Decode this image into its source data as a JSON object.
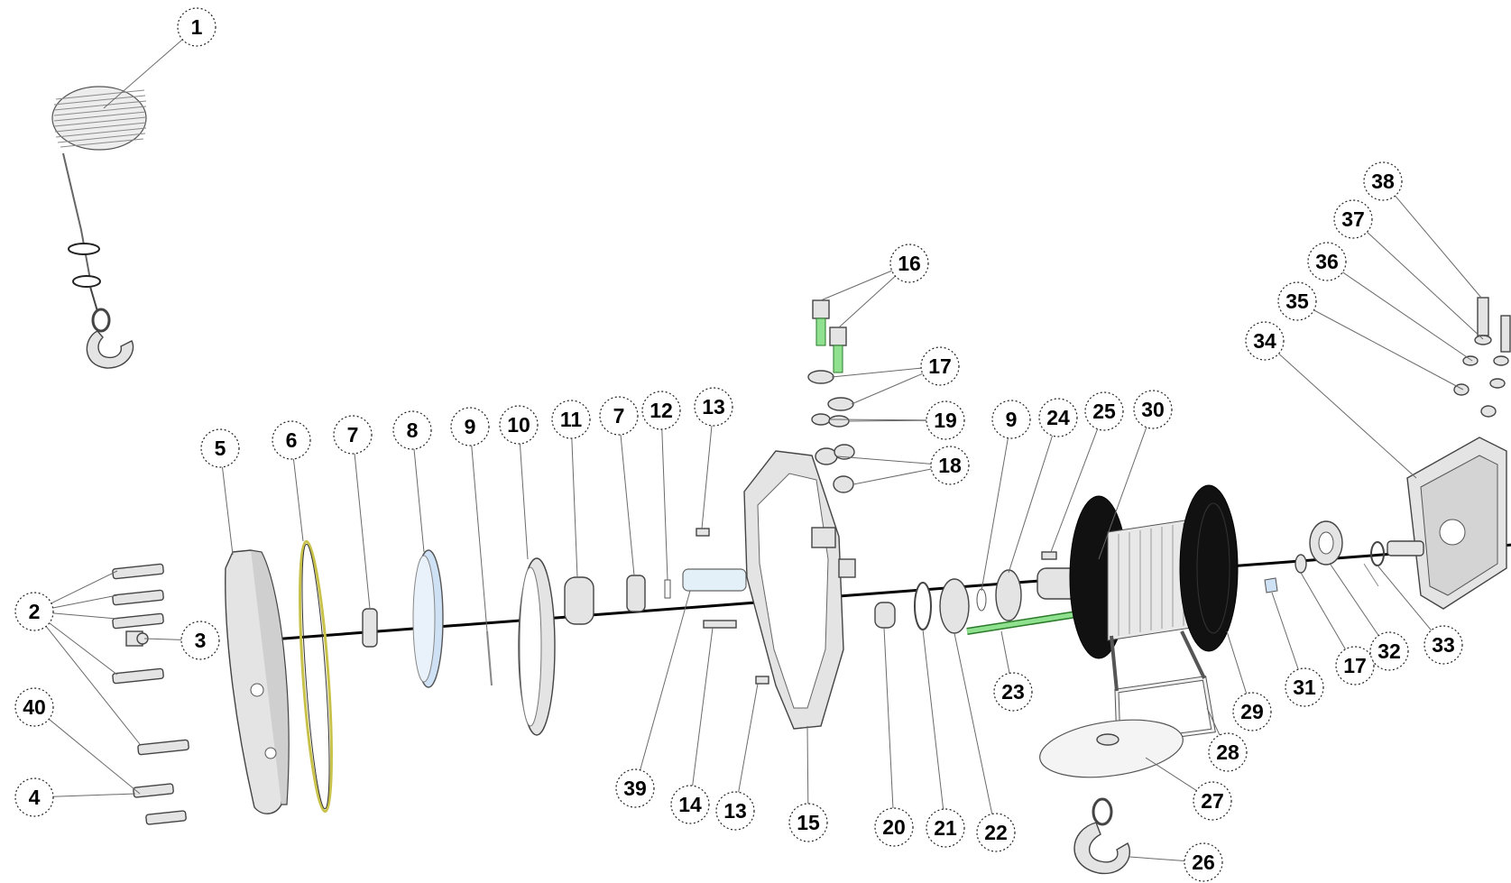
{
  "diagram": {
    "callouts": [
      {
        "id": "c1",
        "label": "1"
      },
      {
        "id": "c2",
        "label": "2"
      },
      {
        "id": "c3",
        "label": "3"
      },
      {
        "id": "c4",
        "label": "4"
      },
      {
        "id": "c5",
        "label": "5"
      },
      {
        "id": "c6",
        "label": "6"
      },
      {
        "id": "c7a",
        "label": "7"
      },
      {
        "id": "c8",
        "label": "8"
      },
      {
        "id": "c9a",
        "label": "9"
      },
      {
        "id": "c10",
        "label": "10"
      },
      {
        "id": "c11",
        "label": "11"
      },
      {
        "id": "c7b",
        "label": "7"
      },
      {
        "id": "c12",
        "label": "12"
      },
      {
        "id": "c13a",
        "label": "13"
      },
      {
        "id": "c16",
        "label": "16"
      },
      {
        "id": "c17a",
        "label": "17"
      },
      {
        "id": "c19",
        "label": "19"
      },
      {
        "id": "c18",
        "label": "18"
      },
      {
        "id": "c9b",
        "label": "9"
      },
      {
        "id": "c24",
        "label": "24"
      },
      {
        "id": "c25",
        "label": "25"
      },
      {
        "id": "c30",
        "label": "30"
      },
      {
        "id": "c38",
        "label": "38"
      },
      {
        "id": "c37",
        "label": "37"
      },
      {
        "id": "c36",
        "label": "36"
      },
      {
        "id": "c35",
        "label": "35"
      },
      {
        "id": "c34",
        "label": "34"
      },
      {
        "id": "c40",
        "label": "40"
      },
      {
        "id": "c39",
        "label": "39"
      },
      {
        "id": "c14",
        "label": "14"
      },
      {
        "id": "c13b",
        "label": "13"
      },
      {
        "id": "c15",
        "label": "15"
      },
      {
        "id": "c20",
        "label": "20"
      },
      {
        "id": "c21",
        "label": "21"
      },
      {
        "id": "c22",
        "label": "22"
      },
      {
        "id": "c23",
        "label": "23"
      },
      {
        "id": "c26",
        "label": "26"
      },
      {
        "id": "c27",
        "label": "27"
      },
      {
        "id": "c28",
        "label": "28"
      },
      {
        "id": "c29",
        "label": "29"
      },
      {
        "id": "c31",
        "label": "31"
      },
      {
        "id": "c17b",
        "label": "17"
      },
      {
        "id": "c32",
        "label": "32"
      },
      {
        "id": "c33",
        "label": "33"
      }
    ],
    "colors": {
      "part_fill": "#e4e4e4",
      "highlight_green": "#8fe08f",
      "ring_blue": "#cfe2f5",
      "gasket_yellow": "#c9c24a",
      "drum_flange": "#111111"
    }
  }
}
